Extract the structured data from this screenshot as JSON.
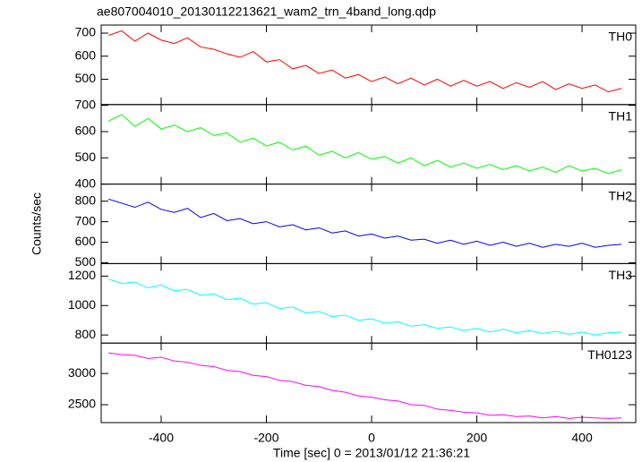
{
  "title": "ae807004010_20130112213621_wam2_trn_4band_long.qdp",
  "y_label": "Counts/sec",
  "x_label": "Time [sec] 0 = 2013/01/12 21:36:21",
  "chart_data": [
    {
      "type": "line",
      "xlim": [
        -514,
        502
      ],
      "xticks": [
        -400,
        -200,
        0,
        200,
        400
      ],
      "ylim": [
        390,
        735
      ],
      "yticks": [
        500,
        600,
        700
      ],
      "x": [
        -500,
        -475,
        -450,
        -425,
        -400,
        -375,
        -350,
        -325,
        -300,
        -275,
        -250,
        -225,
        -200,
        -175,
        -150,
        -125,
        -100,
        -75,
        -50,
        -25,
        0,
        25,
        50,
        75,
        100,
        125,
        150,
        175,
        200,
        225,
        250,
        275,
        300,
        325,
        350,
        375,
        400,
        425,
        450,
        475
      ],
      "series": [
        {
          "name": "TH0",
          "color": "#ff0000",
          "values": [
            690,
            710,
            665,
            700,
            670,
            655,
            680,
            640,
            630,
            610,
            595,
            620,
            575,
            585,
            545,
            560,
            525,
            540,
            505,
            520,
            490,
            510,
            480,
            505,
            475,
            500,
            470,
            495,
            470,
            490,
            460,
            485,
            465,
            490,
            455,
            480,
            460,
            475,
            445,
            460
          ]
        }
      ]
    },
    {
      "type": "line",
      "xlim": [
        -514,
        502
      ],
      "xticks": [
        -400,
        -200,
        0,
        200,
        400
      ],
      "ylim": [
        400,
        703
      ],
      "yticks": [
        400,
        500,
        600,
        700
      ],
      "x": [
        -500,
        -475,
        -450,
        -425,
        -400,
        -375,
        -350,
        -325,
        -300,
        -275,
        -250,
        -225,
        -200,
        -175,
        -150,
        -125,
        -100,
        -75,
        -50,
        -25,
        0,
        25,
        50,
        75,
        100,
        125,
        150,
        175,
        200,
        225,
        250,
        275,
        300,
        325,
        350,
        375,
        400,
        425,
        450,
        475
      ],
      "series": [
        {
          "name": "TH1",
          "color": "#00ff00",
          "values": [
            640,
            665,
            620,
            650,
            610,
            625,
            600,
            615,
            585,
            595,
            560,
            575,
            545,
            560,
            530,
            545,
            510,
            525,
            500,
            520,
            495,
            505,
            480,
            500,
            470,
            490,
            465,
            480,
            460,
            475,
            455,
            470,
            450,
            465,
            445,
            470,
            450,
            460,
            440,
            455
          ]
        }
      ]
    },
    {
      "type": "line",
      "xlim": [
        -514,
        502
      ],
      "xticks": [
        -400,
        -200,
        0,
        200,
        400
      ],
      "ylim": [
        496,
        883
      ],
      "yticks": [
        500,
        600,
        700,
        800
      ],
      "x": [
        -500,
        -475,
        -450,
        -425,
        -400,
        -375,
        -350,
        -325,
        -300,
        -275,
        -250,
        -225,
        -200,
        -175,
        -150,
        -125,
        -100,
        -75,
        -50,
        -25,
        0,
        25,
        50,
        75,
        100,
        125,
        150,
        175,
        200,
        225,
        250,
        275,
        300,
        325,
        350,
        375,
        400,
        425,
        450,
        475
      ],
      "series": [
        {
          "name": "TH2",
          "color": "#0000ff",
          "values": [
            810,
            790,
            770,
            795,
            760,
            745,
            765,
            720,
            740,
            705,
            715,
            690,
            700,
            675,
            685,
            660,
            670,
            645,
            655,
            630,
            640,
            620,
            630,
            610,
            615,
            595,
            610,
            590,
            605,
            585,
            600,
            580,
            595,
            575,
            590,
            580,
            595,
            575,
            585,
            590
          ]
        }
      ]
    },
    {
      "type": "line",
      "xlim": [
        -514,
        502
      ],
      "xticks": [
        -400,
        -200,
        0,
        200,
        400
      ],
      "ylim": [
        745,
        1285
      ],
      "yticks": [
        800,
        1000,
        1200
      ],
      "x": [
        -500,
        -475,
        -450,
        -425,
        -400,
        -375,
        -350,
        -325,
        -300,
        -275,
        -250,
        -225,
        -200,
        -175,
        -150,
        -125,
        -100,
        -75,
        -50,
        -25,
        0,
        25,
        50,
        75,
        100,
        125,
        150,
        175,
        200,
        225,
        250,
        275,
        300,
        325,
        350,
        375,
        400,
        425,
        450,
        475
      ],
      "series": [
        {
          "name": "TH3",
          "color": "#00ffff",
          "values": [
            1180,
            1150,
            1160,
            1120,
            1140,
            1100,
            1110,
            1070,
            1080,
            1040,
            1050,
            1010,
            1020,
            980,
            990,
            950,
            960,
            925,
            935,
            900,
            910,
            880,
            890,
            860,
            870,
            845,
            855,
            830,
            845,
            820,
            840,
            815,
            830,
            810,
            825,
            805,
            820,
            800,
            815,
            820
          ]
        }
      ]
    },
    {
      "type": "line",
      "xlim": [
        -514,
        502
      ],
      "xticks": [
        -400,
        -200,
        0,
        200,
        400
      ],
      "ylim": [
        2214,
        3486
      ],
      "yticks": [
        2500,
        3000
      ],
      "x": [
        -500,
        -475,
        -450,
        -425,
        -400,
        -375,
        -350,
        -325,
        -300,
        -275,
        -250,
        -225,
        -200,
        -175,
        -150,
        -125,
        -100,
        -75,
        -50,
        -25,
        0,
        25,
        50,
        75,
        100,
        125,
        150,
        175,
        200,
        225,
        250,
        275,
        300,
        325,
        350,
        375,
        400,
        425,
        450,
        475
      ],
      "series": [
        {
          "name": "TH0123",
          "color": "#ff00ff",
          "values": [
            3330,
            3300,
            3290,
            3240,
            3260,
            3200,
            3180,
            3130,
            3110,
            3050,
            3030,
            2970,
            2950,
            2890,
            2870,
            2810,
            2790,
            2730,
            2700,
            2640,
            2620,
            2580,
            2560,
            2500,
            2490,
            2430,
            2410,
            2380,
            2370,
            2330,
            2340,
            2310,
            2320,
            2290,
            2310,
            2280,
            2300,
            2290,
            2280,
            2290
          ]
        }
      ]
    }
  ]
}
